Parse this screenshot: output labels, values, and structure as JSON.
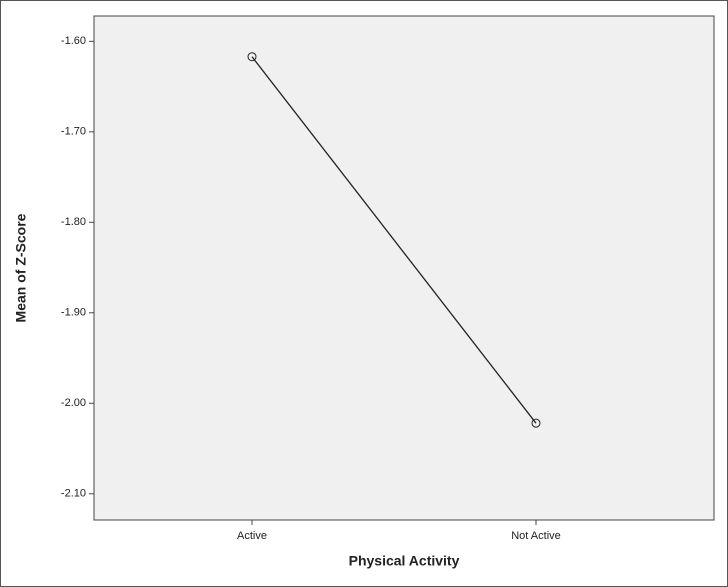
{
  "chart_data": {
    "type": "line",
    "categories": [
      "Active",
      "Not Active"
    ],
    "values": [
      -1.617,
      -2.022
    ],
    "color": "#222222",
    "ylim": [
      -2.129,
      -1.572
    ],
    "yticks": [
      {
        "value": -1.6,
        "label": "-1.60"
      },
      {
        "value": -1.7,
        "label": "-1.70"
      },
      {
        "value": -1.8,
        "label": "-1.80"
      },
      {
        "value": -1.9,
        "label": "-1.90"
      },
      {
        "value": -2.0,
        "label": "-2.00"
      },
      {
        "value": -2.1,
        "label": "-2.10"
      }
    ],
    "x_label": "Physical Activity",
    "y_label": "Mean of Z-Score"
  }
}
